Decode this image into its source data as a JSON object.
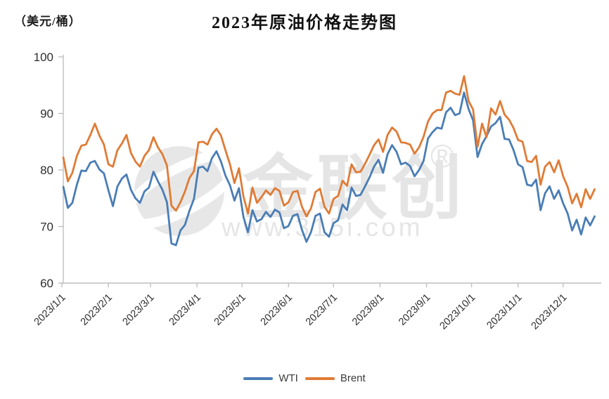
{
  "header": {
    "unit_label": "（美元/桶）",
    "title": "2023年原油价格走势图"
  },
  "watermark": {
    "brand": "金联创",
    "registered": "®",
    "url": "www.315i.com"
  },
  "legend": {
    "items": [
      "WTI",
      "Brent"
    ]
  },
  "chart_data": {
    "type": "line",
    "title": "2023年原油价格走势图",
    "xlabel": "",
    "ylabel": "美元/桶",
    "ylim": [
      60,
      100
    ],
    "yticks": [
      60,
      70,
      80,
      90,
      100
    ],
    "grid": false,
    "legend_position": "bottom",
    "axis_color": "#bfbfbf",
    "xtick_labels": [
      "2023/1/1",
      "2023/2/1",
      "2023/3/1",
      "2023/4/1",
      "2023/5/1",
      "2023/6/1",
      "2023/7/1",
      "2023/8/1",
      "2023/9/1",
      "2023/10/1",
      "2023/11/1",
      "2023/12/1"
    ],
    "xtick_days": [
      1,
      32,
      60,
      91,
      121,
      152,
      182,
      213,
      244,
      274,
      305,
      335
    ],
    "x_days": {
      "start": 2,
      "step": 3,
      "count": 119
    },
    "series": [
      {
        "name": "WTI",
        "color": "#4a7db5",
        "values": [
          77.0,
          73.3,
          74.2,
          77.4,
          79.9,
          79.8,
          81.3,
          81.6,
          80.1,
          79.4,
          76.4,
          73.6,
          77.1,
          78.5,
          79.2,
          76.5,
          75.0,
          74.2,
          76.2,
          76.9,
          79.7,
          78.0,
          76.5,
          74.3,
          67.0,
          66.7,
          69.3,
          70.3,
          72.8,
          74.9,
          80.4,
          80.6,
          79.8,
          82.1,
          83.3,
          81.5,
          79.0,
          77.3,
          74.6,
          76.8,
          71.7,
          69.0,
          72.9,
          70.9,
          71.3,
          72.6,
          71.7,
          73.0,
          72.5,
          69.7,
          70.1,
          71.9,
          72.2,
          69.4,
          67.3,
          69.0,
          71.9,
          72.3,
          69.0,
          68.2,
          70.6,
          71.1,
          73.9,
          72.9,
          76.9,
          75.4,
          75.6,
          77.1,
          78.7,
          80.6,
          81.8,
          79.5,
          82.8,
          84.4,
          83.2,
          81.0,
          81.3,
          80.7,
          78.9,
          80.0,
          81.6,
          85.6,
          86.7,
          87.5,
          87.3,
          90.2,
          91.0,
          89.7,
          90.0,
          93.7,
          90.8,
          88.8,
          82.3,
          84.6,
          86.0,
          87.7,
          88.3,
          89.4,
          85.5,
          85.4,
          83.5,
          81.0,
          80.5,
          77.4,
          77.2,
          78.3,
          72.9,
          75.9,
          77.1,
          74.9,
          76.4,
          74.1,
          72.3,
          69.3,
          71.2,
          68.6,
          71.6,
          70.2,
          71.8
        ]
      },
      {
        "name": "Brent",
        "color": "#e07b35",
        "values": [
          82.2,
          78.0,
          79.5,
          82.5,
          84.3,
          84.5,
          86.2,
          88.2,
          86.1,
          84.5,
          81.0,
          80.6,
          83.5,
          84.7,
          86.2,
          83.0,
          81.5,
          80.6,
          82.5,
          83.5,
          85.8,
          84.0,
          82.8,
          80.8,
          73.7,
          72.8,
          74.3,
          76.2,
          78.6,
          79.8,
          84.9,
          85.0,
          84.5,
          86.3,
          87.3,
          86.1,
          83.5,
          81.0,
          77.7,
          80.3,
          75.3,
          72.3,
          76.9,
          74.2,
          75.2,
          76.4,
          75.6,
          76.8,
          76.3,
          73.7,
          74.3,
          76.1,
          76.3,
          73.5,
          71.8,
          73.2,
          76.1,
          76.7,
          73.5,
          72.3,
          74.9,
          75.4,
          78.1,
          77.2,
          81.0,
          79.6,
          79.7,
          81.1,
          82.7,
          84.4,
          85.4,
          83.2,
          86.2,
          87.5,
          86.8,
          84.9,
          84.8,
          84.5,
          82.9,
          84.0,
          85.9,
          88.6,
          90.0,
          90.6,
          90.6,
          93.7,
          94.0,
          93.5,
          93.3,
          96.6,
          92.2,
          90.7,
          84.1,
          88.2,
          85.8,
          90.9,
          89.8,
          92.2,
          89.8,
          88.9,
          87.4,
          85.3,
          85.0,
          81.6,
          81.4,
          82.5,
          77.4,
          80.6,
          81.4,
          79.6,
          81.7,
          78.9,
          77.0,
          74.1,
          75.8,
          73.4,
          76.6,
          74.9,
          76.6
        ]
      }
    ]
  }
}
